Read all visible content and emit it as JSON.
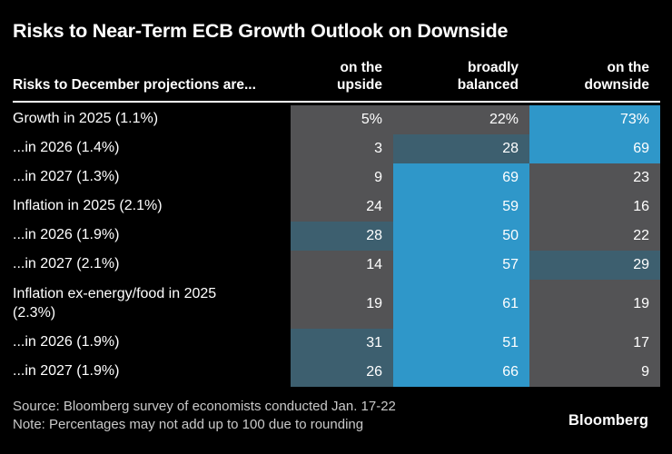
{
  "title": "Risks to Near-Term ECB Growth Outlook on Downside",
  "colors": {
    "background": "#000000",
    "cell_neutral": "#535355",
    "cell_moderate": "#3d5f6f",
    "cell_high": "#2f97c9",
    "text_primary": "#ffffff",
    "text_secondary": "#c9c9c9"
  },
  "chart_data": {
    "type": "heatmap",
    "title": "Risks to Near-Term ECB Growth Outlook on Downside",
    "row_header": "Risks to December projections are...",
    "columns": [
      "on the\nupside",
      "broadly\nbalanced",
      "on the\ndownside"
    ],
    "unit": "percent of respondents",
    "legend_position": "none",
    "rows": [
      {
        "label": "Growth in 2025 (1.1%)",
        "display": [
          "5%",
          "22%",
          "73%"
        ],
        "values": [
          5,
          22,
          73
        ],
        "tones": [
          "neutral",
          "neutral",
          "high"
        ]
      },
      {
        "label": "...in 2026 (1.4%)",
        "display": [
          "3",
          "28",
          "69"
        ],
        "values": [
          3,
          28,
          69
        ],
        "tones": [
          "neutral",
          "moderate",
          "high"
        ]
      },
      {
        "label": "...in 2027 (1.3%)",
        "display": [
          "9",
          "69",
          "23"
        ],
        "values": [
          9,
          69,
          23
        ],
        "tones": [
          "neutral",
          "high",
          "neutral"
        ]
      },
      {
        "label": "Inflation in 2025 (2.1%)",
        "display": [
          "24",
          "59",
          "16"
        ],
        "values": [
          24,
          59,
          16
        ],
        "tones": [
          "neutral",
          "high",
          "neutral"
        ]
      },
      {
        "label": "...in 2026 (1.9%)",
        "display": [
          "28",
          "50",
          "22"
        ],
        "values": [
          28,
          50,
          22
        ],
        "tones": [
          "moderate",
          "high",
          "neutral"
        ]
      },
      {
        "label": "...in 2027 (2.1%)",
        "display": [
          "14",
          "57",
          "29"
        ],
        "values": [
          14,
          57,
          29
        ],
        "tones": [
          "neutral",
          "high",
          "moderate"
        ]
      },
      {
        "label": "Inflation ex-energy/food in 2025\n(2.3%)",
        "display": [
          "19",
          "61",
          "19"
        ],
        "values": [
          19,
          61,
          19
        ],
        "tones": [
          "neutral",
          "high",
          "neutral"
        ],
        "tall": true
      },
      {
        "label": "...in 2026 (1.9%)",
        "display": [
          "31",
          "51",
          "17"
        ],
        "values": [
          31,
          51,
          17
        ],
        "tones": [
          "moderate",
          "high",
          "neutral"
        ]
      },
      {
        "label": "...in 2027 (1.9%)",
        "display": [
          "26",
          "66",
          "9"
        ],
        "values": [
          26,
          66,
          9
        ],
        "tones": [
          "moderate",
          "high",
          "neutral"
        ]
      }
    ]
  },
  "footer": {
    "source": "Source: Bloomberg survey of economists conducted Jan. 17-22",
    "note": "Note: Percentages may not add up to 100 due to rounding",
    "logo": "Bloomberg"
  }
}
